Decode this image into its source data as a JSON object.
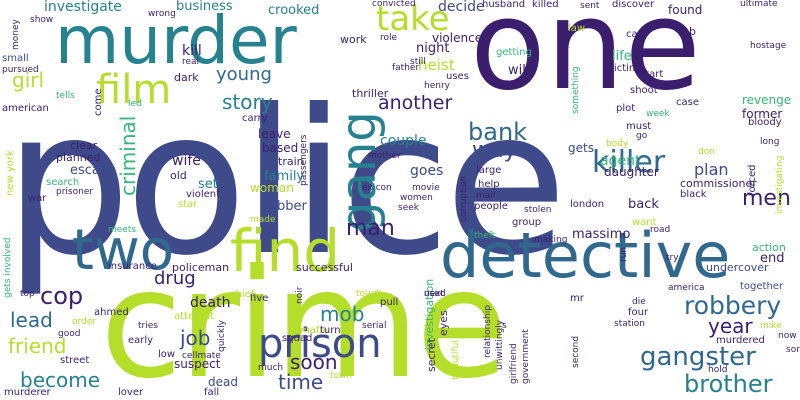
{
  "palette": {
    "purple": "#3b1f6e",
    "indigo": "#3e4a89",
    "blue": "#31688e",
    "teal": "#26828e",
    "green": "#35b779",
    "lime": "#b5de2b",
    "background": "#ffffff"
  },
  "words": [
    {
      "text": "police",
      "color": "#3e4a89"
    },
    {
      "text": "crime",
      "color": "#b5de2b"
    },
    {
      "text": "one",
      "color": "#3b1f6e"
    },
    {
      "text": "murder",
      "color": "#26828e"
    },
    {
      "text": "detective",
      "color": "#31688e"
    },
    {
      "text": "find",
      "color": "#b5de2b"
    },
    {
      "text": "two",
      "color": "#31688e"
    },
    {
      "text": "gang",
      "color": "#26828e"
    },
    {
      "text": "prison",
      "color": "#3e4a89"
    },
    {
      "text": "film",
      "color": "#b5de2b"
    },
    {
      "text": "take",
      "color": "#b5de2b"
    },
    {
      "text": "killer",
      "color": "#31688e"
    },
    {
      "text": "gangster",
      "color": "#31688e"
    },
    {
      "text": "robbery",
      "color": "#31688e"
    },
    {
      "text": "brother",
      "color": "#26828e"
    },
    {
      "text": "cop",
      "color": "#3b1f6e"
    },
    {
      "text": "bank",
      "color": "#31688e"
    },
    {
      "text": "way",
      "color": "#3e4a89"
    },
    {
      "text": "man",
      "color": "#3b1f6e"
    },
    {
      "text": "men",
      "color": "#3b1f6e"
    },
    {
      "text": "year",
      "color": "#3b1f6e"
    },
    {
      "text": "time",
      "color": "#3e4a89"
    },
    {
      "text": "soon",
      "color": "#3b1f6e"
    },
    {
      "text": "mob",
      "color": "#26828e"
    },
    {
      "text": "job",
      "color": "#3e4a89"
    },
    {
      "text": "become",
      "color": "#26828e"
    },
    {
      "text": "friend",
      "color": "#b5de2b"
    },
    {
      "text": "lead",
      "color": "#31688e"
    },
    {
      "text": "story",
      "color": "#26828e"
    },
    {
      "text": "another",
      "color": "#3b1f6e"
    },
    {
      "text": "young",
      "color": "#31688e"
    },
    {
      "text": "girl",
      "color": "#b5de2b"
    },
    {
      "text": "criminal",
      "color": "#35b779"
    },
    {
      "text": "drug",
      "color": "#3b1f6e"
    },
    {
      "text": "death",
      "color": "#3b1f6e"
    },
    {
      "text": "investigate",
      "color": "#26828e"
    },
    {
      "text": "business",
      "color": "#26828e"
    },
    {
      "text": "crooked",
      "color": "#26828e"
    },
    {
      "text": "decide",
      "color": "#3e4a89"
    },
    {
      "text": "found",
      "color": "#3b1f6e"
    },
    {
      "text": "kill",
      "color": "#3b1f6e"
    },
    {
      "text": "heist",
      "color": "#b5de2b"
    },
    {
      "text": "night",
      "color": "#3b1f6e"
    },
    {
      "text": "work",
      "color": "#3b1f6e"
    },
    {
      "text": "violence",
      "color": "#3b1f6e"
    },
    {
      "text": "agent",
      "color": "#35b779"
    },
    {
      "text": "couple",
      "color": "#26828e"
    },
    {
      "text": "goes",
      "color": "#3e4a89"
    },
    {
      "text": "wife",
      "color": "#3b1f6e"
    },
    {
      "text": "family",
      "color": "#26828e"
    },
    {
      "text": "set",
      "color": "#26828e"
    },
    {
      "text": "woman",
      "color": "#b5de2b"
    },
    {
      "text": "escape",
      "color": "#3e4a89"
    },
    {
      "text": "robber",
      "color": "#3e4a89"
    },
    {
      "text": "plan",
      "color": "#3e4a89"
    },
    {
      "text": "end",
      "color": "#3b1f6e"
    },
    {
      "text": "life",
      "color": "#35b779"
    },
    {
      "text": "will",
      "color": "#3b1f6e"
    },
    {
      "text": "gets",
      "color": "#3e4a89"
    },
    {
      "text": "back",
      "color": "#3b1f6e"
    },
    {
      "text": "daughter",
      "color": "#3b1f6e"
    },
    {
      "text": "revenge",
      "color": "#35b779"
    },
    {
      "text": "former",
      "color": "#3b1f6e"
    },
    {
      "text": "commissioner",
      "color": "#3b1f6e"
    },
    {
      "text": "massimo",
      "color": "#3b1f6e"
    },
    {
      "text": "mafia",
      "color": "#b5de2b"
    },
    {
      "text": "undercover",
      "color": "#3e4a89"
    },
    {
      "text": "action",
      "color": "#35b779"
    },
    {
      "text": "together",
      "color": "#3e4a89"
    },
    {
      "text": "investigation",
      "color": "#35b779"
    },
    {
      "text": "small",
      "color": "#3e4a89"
    },
    {
      "text": "american",
      "color": "#3b1f6e"
    },
    {
      "text": "london",
      "color": "#3b1f6e"
    },
    {
      "text": "suspect",
      "color": "#3b1f6e"
    },
    {
      "text": "dead",
      "color": "#3e4a89"
    },
    {
      "text": "street",
      "color": "#3b1f6e"
    },
    {
      "text": "policeman",
      "color": "#3b1f6e"
    },
    {
      "text": "insurance",
      "color": "#3b1f6e"
    },
    {
      "text": "successful",
      "color": "#3b1f6e"
    },
    {
      "text": "mother",
      "color": "#3b1f6e"
    },
    {
      "text": "help",
      "color": "#3b1f6e"
    },
    {
      "text": "large",
      "color": "#3b1f6e"
    },
    {
      "text": "group",
      "color": "#3b1f6e"
    },
    {
      "text": "rob",
      "color": "#3b1f6e"
    },
    {
      "text": "hostage",
      "color": "#3b1f6e"
    },
    {
      "text": "shoot",
      "color": "#3b1f6e"
    },
    {
      "text": "case",
      "color": "#3b1f6e"
    },
    {
      "text": "victim",
      "color": "#3b1f6e"
    },
    {
      "text": "husband",
      "color": "#3b1f6e"
    },
    {
      "text": "killed",
      "color": "#3b1f6e"
    },
    {
      "text": "sent",
      "color": "#3b1f6e"
    },
    {
      "text": "discover",
      "color": "#3b1f6e"
    },
    {
      "text": "ultimate",
      "color": "#3b1f6e"
    },
    {
      "text": "convicted",
      "color": "#3b1f6e"
    },
    {
      "text": "wrong",
      "color": "#3b1f6e"
    },
    {
      "text": "show",
      "color": "#3b1f6e"
    },
    {
      "text": "money",
      "color": "#3b1f6e"
    },
    {
      "text": "pursued",
      "color": "#3b1f6e"
    },
    {
      "text": "tells",
      "color": "#35b779"
    },
    {
      "text": "come",
      "color": "#3b1f6e"
    },
    {
      "text": "led",
      "color": "#35b779"
    },
    {
      "text": "dark",
      "color": "#3b1f6e"
    },
    {
      "text": "real",
      "color": "#3b1f6e"
    },
    {
      "text": "carry",
      "color": "#3b1f6e"
    },
    {
      "text": "leave",
      "color": "#3b1f6e"
    },
    {
      "text": "based",
      "color": "#3b1f6e"
    },
    {
      "text": "train",
      "color": "#3b1f6e"
    },
    {
      "text": "passengers",
      "color": "#3b1f6e"
    },
    {
      "text": "thriller",
      "color": "#3b1f6e"
    },
    {
      "text": "father",
      "color": "#3b1f6e"
    },
    {
      "text": "henry",
      "color": "#3b1f6e"
    },
    {
      "text": "uses",
      "color": "#3b1f6e"
    },
    {
      "text": "still",
      "color": "#3b1f6e"
    },
    {
      "text": "role",
      "color": "#3b1f6e"
    },
    {
      "text": "getting",
      "color": "#35b779"
    },
    {
      "text": "start",
      "color": "#3b1f6e"
    },
    {
      "text": "plot",
      "color": "#3b1f6e"
    },
    {
      "text": "week",
      "color": "#35b779"
    },
    {
      "text": "something",
      "color": "#35b779"
    },
    {
      "text": "must",
      "color": "#3b1f6e"
    },
    {
      "text": "go",
      "color": "#3b1f6e"
    },
    {
      "text": "body",
      "color": "#b5de2b"
    },
    {
      "text": "don",
      "color": "#b5de2b"
    },
    {
      "text": "bloody",
      "color": "#3b1f6e"
    },
    {
      "text": "long",
      "color": "#3b1f6e"
    },
    {
      "text": "investigating",
      "color": "#b5de2b"
    },
    {
      "text": "forced",
      "color": "#3b1f6e"
    },
    {
      "text": "black",
      "color": "#3b1f6e"
    },
    {
      "text": "hold",
      "color": "#3b1f6e"
    },
    {
      "text": "car",
      "color": "#3b1f6e"
    },
    {
      "text": "law",
      "color": "#b5de2b"
    },
    {
      "text": "clear",
      "color": "#3b1f6e"
    },
    {
      "text": "planned",
      "color": "#3b1f6e"
    },
    {
      "text": "search",
      "color": "#35b779"
    },
    {
      "text": "prisoner",
      "color": "#3b1f6e"
    },
    {
      "text": "old",
      "color": "#3b1f6e"
    },
    {
      "text": "violent",
      "color": "#3b1f6e"
    },
    {
      "text": "star",
      "color": "#b5de2b"
    },
    {
      "text": "made",
      "color": "#b5de2b"
    },
    {
      "text": "new york",
      "color": "#b5de2b"
    },
    {
      "text": "war",
      "color": "#3b1f6e"
    },
    {
      "text": "meets",
      "color": "#35b779"
    },
    {
      "text": "gets involved",
      "color": "#35b779"
    },
    {
      "text": "top",
      "color": "#3b1f6e"
    },
    {
      "text": "ahmed",
      "color": "#3b1f6e"
    },
    {
      "text": "five",
      "color": "#3b1f6e"
    },
    {
      "text": "noir",
      "color": "#3b1f6e"
    },
    {
      "text": "pull",
      "color": "#3b1f6e"
    },
    {
      "text": "used",
      "color": "#3b1f6e"
    },
    {
      "text": "theft",
      "color": "#35b779"
    },
    {
      "text": "making",
      "color": "#3b1f6e"
    },
    {
      "text": "road",
      "color": "#3b1f6e"
    },
    {
      "text": "try",
      "color": "#3b1f6e"
    },
    {
      "text": "america",
      "color": "#3b1f6e"
    },
    {
      "text": "mike",
      "color": "#b5de2b"
    },
    {
      "text": "murdered",
      "color": "#3b1f6e"
    },
    {
      "text": "now",
      "color": "#3b1f6e"
    },
    {
      "text": "son",
      "color": "#3b1f6e"
    },
    {
      "text": "station",
      "color": "#3b1f6e"
    },
    {
      "text": "die",
      "color": "#3b1f6e"
    },
    {
      "text": "four",
      "color": "#3b1f6e"
    },
    {
      "text": "chief",
      "color": "#b5de2b"
    },
    {
      "text": "attempt",
      "color": "#b5de2b"
    },
    {
      "text": "tries",
      "color": "#3b1f6e"
    },
    {
      "text": "early",
      "color": "#3b1f6e"
    },
    {
      "text": "low",
      "color": "#3b1f6e"
    },
    {
      "text": "cellmate",
      "color": "#3b1f6e"
    },
    {
      "text": "quickly",
      "color": "#3b1f6e"
    },
    {
      "text": "squad",
      "color": "#3b1f6e"
    },
    {
      "text": "turn",
      "color": "#3b1f6e"
    },
    {
      "text": "much",
      "color": "#3b1f6e"
    },
    {
      "text": "town",
      "color": "#b5de2b"
    },
    {
      "text": "tough",
      "color": "#b5de2b"
    },
    {
      "text": "serial",
      "color": "#3b1f6e"
    },
    {
      "text": "next",
      "color": "#3b1f6e"
    },
    {
      "text": "mr",
      "color": "#3b1f6e"
    },
    {
      "text": "eyes",
      "color": "#3b1f6e"
    },
    {
      "text": "secret",
      "color": "#3b1f6e"
    },
    {
      "text": "beautiful",
      "color": "#b5de2b"
    },
    {
      "text": "relationship",
      "color": "#3b1f6e"
    },
    {
      "text": "unwittingly",
      "color": "#3b1f6e"
    },
    {
      "text": "girlfriend",
      "color": "#3b1f6e"
    },
    {
      "text": "government",
      "color": "#3b1f6e"
    },
    {
      "text": "s",
      "color": "#3b1f6e"
    },
    {
      "text": "second",
      "color": "#3b1f6e"
    },
    {
      "text": "run",
      "color": "#3b1f6e"
    },
    {
      "text": "order",
      "color": "#b5de2b"
    },
    {
      "text": "good",
      "color": "#3b1f6e"
    },
    {
      "text": "murderer",
      "color": "#3b1f6e"
    },
    {
      "text": "lover",
      "color": "#3b1f6e"
    },
    {
      "text": "fall",
      "color": "#3b1f6e"
    },
    {
      "text": "mail",
      "color": "#3b1f6e"
    },
    {
      "text": "people",
      "color": "#3b1f6e"
    },
    {
      "text": "stolen",
      "color": "#3b1f6e"
    },
    {
      "text": "seek",
      "color": "#3b1f6e"
    },
    {
      "text": "women",
      "color": "#3b1f6e"
    },
    {
      "text": "movie",
      "color": "#3b1f6e"
    },
    {
      "text": "corruption",
      "color": "#3b1f6e"
    },
    {
      "text": "ex con",
      "color": "#3b1f6e"
    },
    {
      "text": "want",
      "color": "#b5de2b"
    }
  ]
}
